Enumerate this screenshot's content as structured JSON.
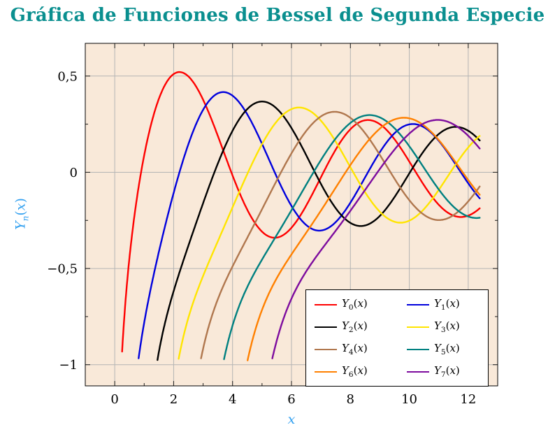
{
  "title": "Gráfica de Funciones de Bessel de Segunda Especie",
  "colors": {
    "title": "#0a8f8f",
    "axis_label": "#36a2f0",
    "plot_bg": "#f9e9d9",
    "grid": "#b4b4b4",
    "frame": "#000000",
    "tick": "#1a1a1a"
  },
  "ylabel_parts": {
    "base": "Y",
    "sub": "n",
    "open": "(",
    "arg": "x",
    "close": ")"
  },
  "label_parts": {
    "base": "Y",
    "open": "(",
    "arg": "x",
    "close": ")"
  },
  "chart_data": {
    "type": "line",
    "title": "Gráfica de Funciones de Bessel de Segunda Especie",
    "xlabel": "x",
    "ylabel": "Yn(x)",
    "function_family": "Bessel functions of the second kind Y_n(x), orders n = 0..7",
    "xlim": [
      -1,
      13
    ],
    "ylim": [
      -1.11,
      0.67
    ],
    "grid": "major",
    "legend_position": "bottom-right",
    "domain": [
      0.05,
      12.4
    ],
    "sample_step": 0.02,
    "clip_y_min": -0.98,
    "x_ticks": {
      "values": [
        0,
        2,
        4,
        6,
        8,
        10,
        12
      ],
      "labels": [
        "0",
        "2",
        "4",
        "6",
        "8",
        "10",
        "12"
      ],
      "minor": [
        1,
        3,
        5,
        7,
        9,
        11
      ]
    },
    "y_ticks": {
      "values": [
        0.5,
        0,
        -0.5,
        -1
      ],
      "labels": [
        "0,5",
        "0",
        "−0,5",
        "−1"
      ],
      "minor": [
        0.25,
        -0.25,
        -0.75
      ]
    },
    "series": [
      {
        "name": "Y0(x)",
        "order": 0,
        "color": "#fe0000",
        "first_peak": {
          "x": 2.2,
          "y": 0.52
        }
      },
      {
        "name": "Y1(x)",
        "order": 1,
        "color": "#0000dd",
        "first_peak": {
          "x": 3.68,
          "y": 0.42
        }
      },
      {
        "name": "Y2(x)",
        "order": 2,
        "color": "#000000",
        "first_peak": {
          "x": 5.0,
          "y": 0.37
        }
      },
      {
        "name": "Y3(x)",
        "order": 3,
        "color": "#ffe500",
        "first_peak": {
          "x": 6.3,
          "y": 0.33
        }
      },
      {
        "name": "Y4(x)",
        "order": 4,
        "color": "#b0774e",
        "first_peak": {
          "x": 7.5,
          "y": 0.31
        }
      },
      {
        "name": "Y5(x)",
        "order": 5,
        "color": "#008080",
        "first_peak": {
          "x": 8.7,
          "y": 0.3
        }
      },
      {
        "name": "Y6(x)",
        "order": 6,
        "color": "#ff8000",
        "first_peak": {
          "x": 9.9,
          "y": 0.29
        }
      },
      {
        "name": "Y7(x)",
        "order": 7,
        "color": "#7d0c9e",
        "first_peak": {
          "x": 11.1,
          "y": 0.28
        }
      }
    ]
  }
}
